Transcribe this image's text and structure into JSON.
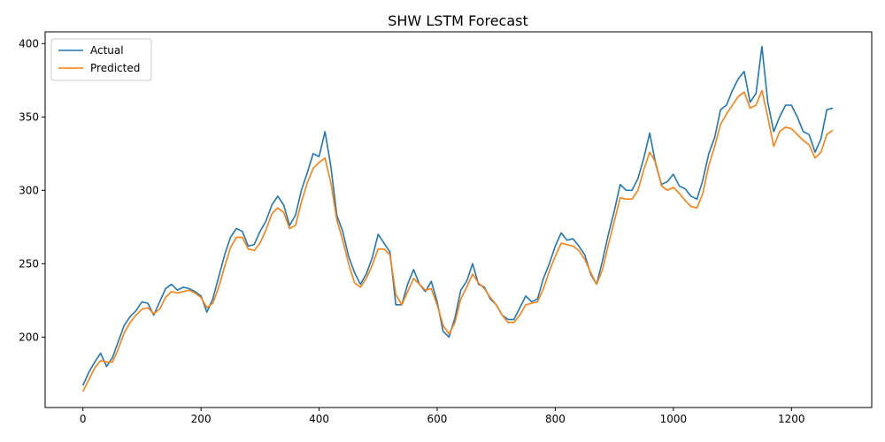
{
  "chart_data": {
    "type": "line",
    "title": "SHW LSTM Forecast",
    "xlabel": "",
    "ylabel": "",
    "xlim": [
      -64,
      1336
    ],
    "ylim": [
      152,
      408
    ],
    "x_ticks": [
      0,
      200,
      400,
      600,
      800,
      1000,
      1200
    ],
    "y_ticks": [
      200,
      250,
      300,
      350,
      400
    ],
    "grid": false,
    "legend_position": "upper-left",
    "series": [
      {
        "name": "Actual",
        "color": "#1f77b4",
        "x": [
          0,
          10,
          20,
          30,
          40,
          50,
          60,
          70,
          80,
          90,
          100,
          110,
          120,
          130,
          140,
          150,
          160,
          170,
          180,
          190,
          200,
          210,
          220,
          230,
          240,
          250,
          260,
          270,
          280,
          290,
          300,
          310,
          320,
          330,
          340,
          350,
          360,
          370,
          380,
          390,
          400,
          410,
          420,
          430,
          440,
          450,
          460,
          470,
          480,
          490,
          500,
          510,
          520,
          530,
          540,
          550,
          560,
          570,
          580,
          590,
          600,
          610,
          620,
          630,
          640,
          650,
          660,
          670,
          680,
          690,
          700,
          710,
          720,
          730,
          740,
          750,
          760,
          770,
          780,
          790,
          800,
          810,
          820,
          830,
          840,
          850,
          860,
          870,
          880,
          890,
          900,
          910,
          920,
          930,
          940,
          950,
          960,
          970,
          980,
          990,
          1000,
          1010,
          1020,
          1030,
          1040,
          1050,
          1060,
          1070,
          1080,
          1090,
          1100,
          1110,
          1120,
          1130,
          1140,
          1150,
          1160,
          1170,
          1180,
          1190,
          1200,
          1210,
          1220,
          1230,
          1240,
          1250,
          1260,
          1270
        ],
        "values": [
          167,
          176,
          183,
          189,
          180,
          186,
          197,
          208,
          214,
          218,
          224,
          223,
          215,
          224,
          233,
          236,
          232,
          234,
          233,
          231,
          228,
          217,
          226,
          241,
          256,
          268,
          274,
          272,
          262,
          263,
          272,
          279,
          290,
          296,
          290,
          276,
          283,
          300,
          312,
          325,
          323,
          340,
          316,
          283,
          272,
          255,
          244,
          236,
          243,
          254,
          270,
          264,
          258,
          222,
          222,
          236,
          246,
          236,
          231,
          238,
          224,
          204,
          200,
          213,
          232,
          238,
          250,
          236,
          234,
          226,
          222,
          215,
          212,
          212,
          220,
          228,
          224,
          226,
          240,
          250,
          262,
          271,
          266,
          267,
          262,
          256,
          243,
          236,
          252,
          270,
          286,
          304,
          300,
          300,
          308,
          322,
          339,
          318,
          304,
          306,
          311,
          303,
          301,
          296,
          294,
          307,
          325,
          336,
          355,
          358,
          368,
          376,
          381,
          360,
          366,
          398,
          360,
          340,
          350,
          358,
          358,
          350,
          340,
          338,
          326,
          335,
          355,
          356
        ]
      },
      {
        "name": "Predicted",
        "color": "#ff7f0e",
        "x": [
          0,
          10,
          20,
          30,
          40,
          50,
          60,
          70,
          80,
          90,
          100,
          110,
          120,
          130,
          140,
          150,
          160,
          170,
          180,
          190,
          200,
          210,
          220,
          230,
          240,
          250,
          260,
          270,
          280,
          290,
          300,
          310,
          320,
          330,
          340,
          350,
          360,
          370,
          380,
          390,
          400,
          410,
          420,
          430,
          440,
          450,
          460,
          470,
          480,
          490,
          500,
          510,
          520,
          530,
          540,
          550,
          560,
          570,
          580,
          590,
          600,
          610,
          620,
          630,
          640,
          650,
          660,
          670,
          680,
          690,
          700,
          710,
          720,
          730,
          740,
          750,
          760,
          770,
          780,
          790,
          800,
          810,
          820,
          830,
          840,
          850,
          860,
          870,
          880,
          890,
          900,
          910,
          920,
          930,
          940,
          950,
          960,
          970,
          980,
          990,
          1000,
          1010,
          1020,
          1030,
          1040,
          1050,
          1060,
          1070,
          1080,
          1090,
          1100,
          1110,
          1120,
          1130,
          1140,
          1150,
          1160,
          1170,
          1180,
          1190,
          1200,
          1210,
          1220,
          1230,
          1240,
          1250,
          1260,
          1270
        ],
        "values": [
          163,
          171,
          179,
          184,
          183,
          183,
          192,
          203,
          210,
          215,
          219,
          220,
          216,
          219,
          227,
          231,
          230,
          231,
          232,
          230,
          227,
          220,
          223,
          234,
          248,
          261,
          268,
          268,
          260,
          259,
          264,
          273,
          284,
          288,
          285,
          274,
          276,
          292,
          305,
          315,
          319,
          322,
          305,
          280,
          266,
          250,
          237,
          234,
          240,
          249,
          260,
          260,
          256,
          229,
          222,
          231,
          240,
          236,
          232,
          233,
          222,
          208,
          202,
          210,
          226,
          234,
          243,
          237,
          233,
          227,
          222,
          215,
          210,
          210,
          215,
          222,
          223,
          224,
          233,
          245,
          255,
          264,
          263,
          262,
          259,
          253,
          244,
          236,
          246,
          263,
          279,
          295,
          294,
          294,
          300,
          314,
          326,
          319,
          303,
          300,
          302,
          298,
          293,
          289,
          288,
          298,
          317,
          330,
          345,
          352,
          358,
          364,
          367,
          356,
          358,
          368,
          350,
          330,
          340,
          343,
          342,
          338,
          334,
          331,
          322,
          326,
          338,
          341
        ]
      }
    ]
  }
}
